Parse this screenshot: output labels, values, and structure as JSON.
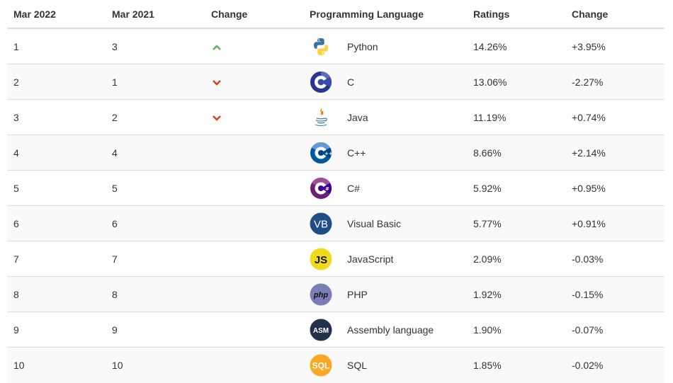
{
  "table": {
    "headers": [
      "Mar 2022",
      "Mar 2021",
      "Change",
      "Programming Language",
      "Ratings",
      "Change"
    ],
    "rows": [
      {
        "rank_2022": "1",
        "rank_2021": "3",
        "trend": "up",
        "icon": "python-icon",
        "language": "Python",
        "rating": "14.26%",
        "change": "+3.95%"
      },
      {
        "rank_2022": "2",
        "rank_2021": "1",
        "trend": "down",
        "icon": "c-icon",
        "language": "C",
        "rating": "13.06%",
        "change": "-2.27%"
      },
      {
        "rank_2022": "3",
        "rank_2021": "2",
        "trend": "down",
        "icon": "java-icon",
        "language": "Java",
        "rating": "11.19%",
        "change": "+0.74%"
      },
      {
        "rank_2022": "4",
        "rank_2021": "4",
        "trend": "none",
        "icon": "cpp-icon",
        "language": "C++",
        "rating": "8.66%",
        "change": "+2.14%"
      },
      {
        "rank_2022": "5",
        "rank_2021": "5",
        "trend": "none",
        "icon": "csharp-icon",
        "language": "C#",
        "rating": "5.92%",
        "change": "+0.95%"
      },
      {
        "rank_2022": "6",
        "rank_2021": "6",
        "trend": "none",
        "icon": "visual-basic-icon",
        "language": "Visual Basic",
        "rating": "5.77%",
        "change": "+0.91%"
      },
      {
        "rank_2022": "7",
        "rank_2021": "7",
        "trend": "none",
        "icon": "javascript-icon",
        "language": "JavaScript",
        "rating": "2.09%",
        "change": "-0.03%"
      },
      {
        "rank_2022": "8",
        "rank_2021": "8",
        "trend": "none",
        "icon": "php-icon",
        "language": "PHP",
        "rating": "1.92%",
        "change": "-0.15%"
      },
      {
        "rank_2022": "9",
        "rank_2021": "9",
        "trend": "none",
        "icon": "assembly-icon",
        "language": "Assembly language",
        "rating": "1.90%",
        "change": "-0.07%"
      },
      {
        "rank_2022": "10",
        "rank_2021": "10",
        "trend": "none",
        "icon": "sql-icon",
        "language": "SQL",
        "rating": "1.85%",
        "change": "-0.02%"
      }
    ]
  },
  "colors": {
    "up_arrow": "#5cb85c",
    "down_arrow": "#d9441c",
    "border": "#dddddd",
    "row_alt": "#f9f9f9"
  },
  "icon_labels": {
    "vb": "VB",
    "js": "JS",
    "php": "php",
    "asm": "ASM",
    "sql": "SQL"
  }
}
